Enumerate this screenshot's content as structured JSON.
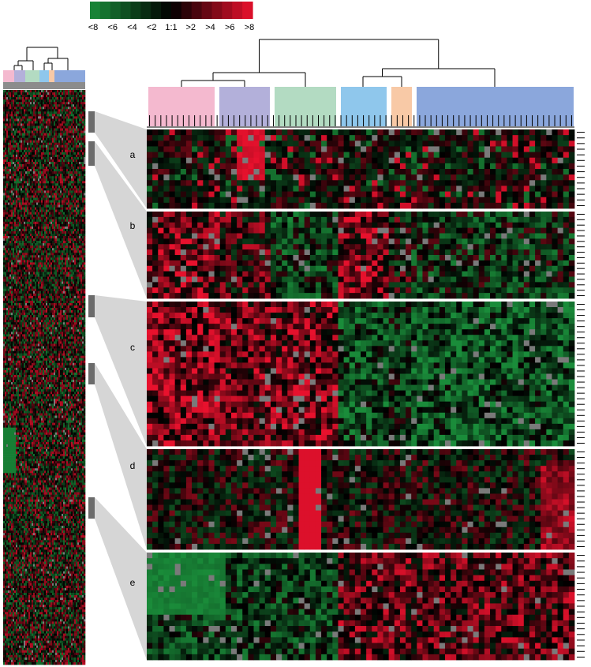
{
  "chart_data": {
    "type": "heatmap",
    "title": "",
    "xlabel": "",
    "ylabel": "",
    "color_scale": {
      "tick_labels": [
        "<8",
        "<6",
        "<4",
        "<2",
        "1:1",
        ">2",
        ">4",
        ">6",
        ">8"
      ],
      "low_color": "#1a8c3a",
      "mid_color": "#000000",
      "high_color": "#e8112d"
    },
    "sample_groups": [
      {
        "color": "#f4b9cf",
        "samples": 13
      },
      {
        "color": "#b3b0da",
        "samples": 9
      },
      {
        "color": "#b3dbc2",
        "samples": 12
      },
      {
        "color": "#8fc7ec",
        "samples": 9
      },
      {
        "color": "#f8c9a6",
        "samples": 4
      },
      {
        "color": "#8ba7dc",
        "samples": 29
      }
    ],
    "missing_color": "#7a7a7a",
    "clusters": [
      {
        "label": "a",
        "genes": 14
      },
      {
        "label": "b",
        "genes": 16
      },
      {
        "label": "c",
        "genes": 26
      },
      {
        "label": "d",
        "genes": 18
      },
      {
        "label": "e",
        "genes": 19
      }
    ],
    "overview": {
      "genes": 360,
      "samples": 76
    }
  }
}
